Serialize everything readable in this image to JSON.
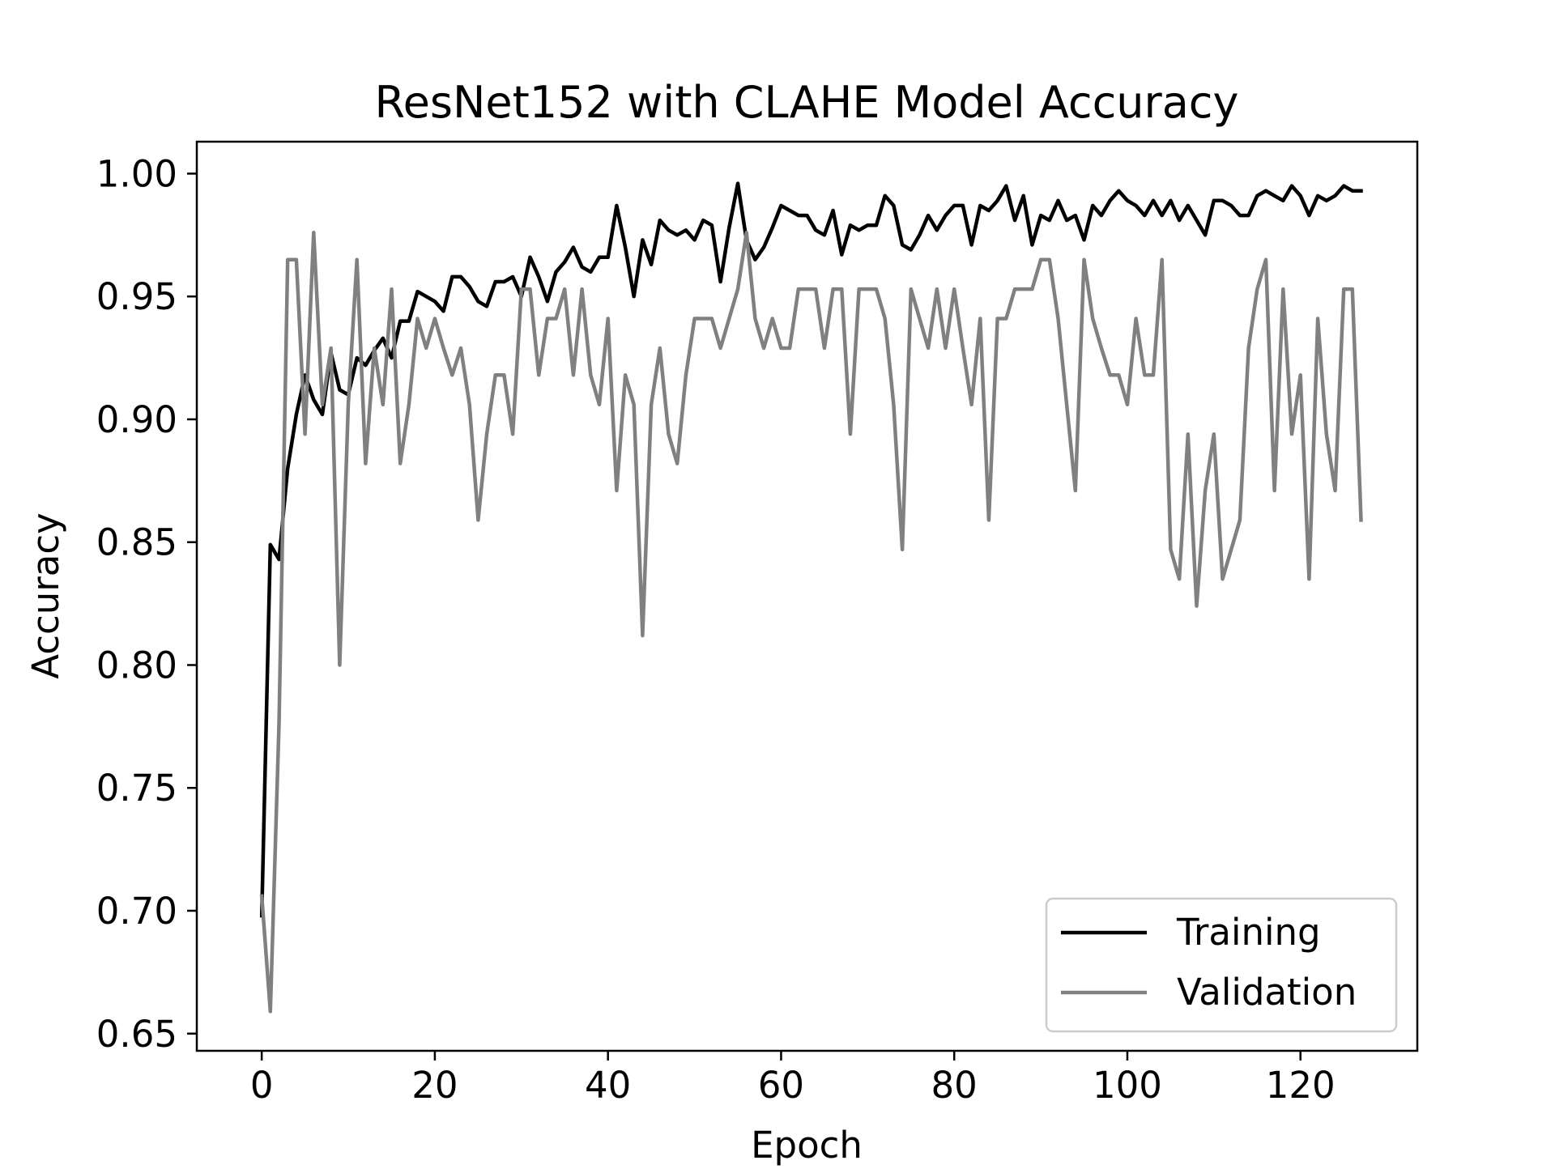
{
  "chart_data": {
    "type": "line",
    "title": "ResNet152 with CLAHE Model Accuracy",
    "xlabel": "Epoch",
    "ylabel": "Accuracy",
    "xlim": [
      -7.5,
      133.5
    ],
    "ylim": [
      0.643,
      1.013
    ],
    "xticks": [
      0,
      20,
      40,
      60,
      80,
      100,
      120
    ],
    "yticks": [
      0.65,
      0.7,
      0.75,
      0.8,
      0.85,
      0.9,
      0.95,
      1.0
    ],
    "ytick_labels": [
      "0.65",
      "0.70",
      "0.75",
      "0.80",
      "0.85",
      "0.90",
      "0.95",
      "1.00"
    ],
    "grid": false,
    "legend": {
      "placement": "lower-right",
      "entries": [
        "Training",
        "Validation"
      ]
    },
    "series": [
      {
        "name": "Training",
        "color": "#000000",
        "x": [
          0,
          1,
          2,
          3,
          4,
          5,
          6,
          7,
          8,
          9,
          10,
          11,
          12,
          13,
          14,
          15,
          16,
          17,
          18,
          19,
          20,
          21,
          22,
          23,
          24,
          25,
          26,
          27,
          28,
          29,
          30,
          31,
          32,
          33,
          34,
          35,
          36,
          37,
          38,
          39,
          40,
          41,
          42,
          43,
          44,
          45,
          46,
          47,
          48,
          49,
          50,
          51,
          52,
          53,
          54,
          55,
          56,
          57,
          58,
          59,
          60,
          61,
          62,
          63,
          64,
          65,
          66,
          67,
          68,
          69,
          70,
          71,
          72,
          73,
          74,
          75,
          76,
          77,
          78,
          79,
          80,
          81,
          82,
          83,
          84,
          85,
          86,
          87,
          88,
          89,
          90,
          91,
          92,
          93,
          94,
          95,
          96,
          97,
          98,
          99,
          100,
          101,
          102,
          103,
          104,
          105,
          106,
          107,
          108,
          109,
          110,
          111,
          112,
          113,
          114,
          115,
          116,
          117,
          118,
          119,
          120,
          121,
          122,
          123,
          124,
          125,
          126,
          127
        ],
        "values": [
          0.698,
          0.849,
          0.843,
          0.88,
          0.902,
          0.918,
          0.908,
          0.902,
          0.927,
          0.912,
          0.91,
          0.925,
          0.922,
          0.928,
          0.933,
          0.925,
          0.94,
          0.94,
          0.952,
          0.95,
          0.948,
          0.944,
          0.958,
          0.958,
          0.954,
          0.948,
          0.946,
          0.956,
          0.956,
          0.958,
          0.95,
          0.966,
          0.958,
          0.948,
          0.96,
          0.964,
          0.97,
          0.962,
          0.96,
          0.966,
          0.966,
          0.987,
          0.97,
          0.95,
          0.973,
          0.963,
          0.981,
          0.977,
          0.975,
          0.977,
          0.973,
          0.981,
          0.979,
          0.956,
          0.978,
          0.996,
          0.973,
          0.965,
          0.97,
          0.978,
          0.987,
          0.985,
          0.983,
          0.983,
          0.977,
          0.975,
          0.985,
          0.967,
          0.979,
          0.977,
          0.979,
          0.979,
          0.991,
          0.987,
          0.971,
          0.969,
          0.975,
          0.983,
          0.977,
          0.983,
          0.987,
          0.987,
          0.971,
          0.987,
          0.985,
          0.989,
          0.995,
          0.981,
          0.991,
          0.971,
          0.983,
          0.981,
          0.989,
          0.981,
          0.983,
          0.973,
          0.987,
          0.983,
          0.989,
          0.993,
          0.989,
          0.987,
          0.983,
          0.989,
          0.983,
          0.989,
          0.981,
          0.987,
          0.981,
          0.975,
          0.989,
          0.989,
          0.987,
          0.983,
          0.983,
          0.991,
          0.993,
          0.991,
          0.989,
          0.995,
          0.991,
          0.983,
          0.991,
          0.989,
          0.991,
          0.995,
          0.993,
          0.993
        ]
      },
      {
        "name": "Validation",
        "color": "#808080",
        "x": [
          0,
          1,
          2,
          3,
          4,
          5,
          6,
          7,
          8,
          9,
          10,
          11,
          12,
          13,
          14,
          15,
          16,
          17,
          18,
          19,
          20,
          21,
          22,
          23,
          24,
          25,
          26,
          27,
          28,
          29,
          30,
          31,
          32,
          33,
          34,
          35,
          36,
          37,
          38,
          39,
          40,
          41,
          42,
          43,
          44,
          45,
          46,
          47,
          48,
          49,
          50,
          51,
          52,
          53,
          54,
          55,
          56,
          57,
          58,
          59,
          60,
          61,
          62,
          63,
          64,
          65,
          66,
          67,
          68,
          69,
          70,
          71,
          72,
          73,
          74,
          75,
          76,
          77,
          78,
          79,
          80,
          81,
          82,
          83,
          84,
          85,
          86,
          87,
          88,
          89,
          90,
          91,
          92,
          93,
          94,
          95,
          96,
          97,
          98,
          99,
          100,
          101,
          102,
          103,
          104,
          105,
          106,
          107,
          108,
          109,
          110,
          111,
          112,
          113,
          114,
          115,
          116,
          117,
          118,
          119,
          120,
          121,
          122,
          123,
          124,
          125,
          126,
          127
        ],
        "values": [
          0.706,
          0.659,
          0.776,
          0.965,
          0.965,
          0.894,
          0.976,
          0.906,
          0.929,
          0.8,
          0.906,
          0.965,
          0.882,
          0.929,
          0.906,
          0.953,
          0.882,
          0.906,
          0.941,
          0.929,
          0.941,
          0.929,
          0.918,
          0.929,
          0.906,
          0.859,
          0.894,
          0.918,
          0.918,
          0.894,
          0.953,
          0.953,
          0.918,
          0.941,
          0.941,
          0.953,
          0.918,
          0.953,
          0.918,
          0.906,
          0.941,
          0.871,
          0.918,
          0.906,
          0.812,
          0.906,
          0.929,
          0.894,
          0.882,
          0.918,
          0.941,
          0.941,
          0.941,
          0.929,
          0.941,
          0.953,
          0.976,
          0.941,
          0.929,
          0.941,
          0.929,
          0.929,
          0.953,
          0.953,
          0.953,
          0.929,
          0.953,
          0.953,
          0.894,
          0.953,
          0.953,
          0.953,
          0.941,
          0.906,
          0.847,
          0.953,
          0.941,
          0.929,
          0.953,
          0.929,
          0.953,
          0.929,
          0.906,
          0.941,
          0.859,
          0.941,
          0.941,
          0.953,
          0.953,
          0.953,
          0.965,
          0.965,
          0.941,
          0.906,
          0.871,
          0.965,
          0.941,
          0.929,
          0.918,
          0.918,
          0.906,
          0.941,
          0.918,
          0.918,
          0.965,
          0.847,
          0.835,
          0.894,
          0.824,
          0.871,
          0.894,
          0.835,
          0.847,
          0.859,
          0.929,
          0.953,
          0.965,
          0.871,
          0.953,
          0.894,
          0.918,
          0.835,
          0.941,
          0.894,
          0.871,
          0.953,
          0.953,
          0.859
        ]
      }
    ]
  }
}
